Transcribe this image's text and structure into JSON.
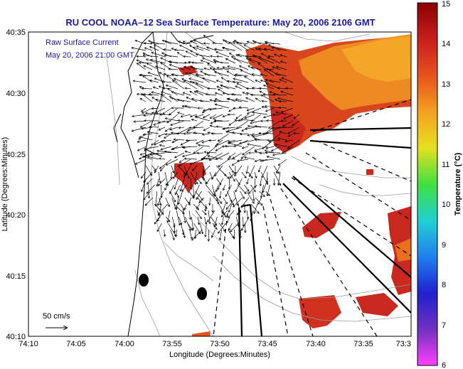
{
  "title": "RU COOL  NOAA–12  Sea Surface Temperature:  May 20, 2006 2106 GMT",
  "legend": {
    "line1": "Raw Surface Current",
    "line2": "May 20, 2006 21:00 GMT",
    "scale_label": "50 cm/s"
  },
  "x_axis": {
    "label": "Longitude (Degrees:Minutes)",
    "ticks": [
      "74:10",
      "74:05",
      "74:00",
      "73:55",
      "73:50",
      "73:45",
      "73:40",
      "73:35",
      "73:3"
    ]
  },
  "y_axis": {
    "label": "Latitude (Degrees:Minutes)",
    "ticks": [
      "40:35",
      "40:30",
      "40:25",
      "40:20",
      "40:15",
      "40:10"
    ]
  },
  "colorbar": {
    "label": "Temperature (°C)",
    "ticks": [
      "15",
      "14",
      "13",
      "12",
      "11",
      "10",
      "9",
      "8",
      "7",
      "6"
    ],
    "colors": [
      "#8b0000",
      "#c81e1e",
      "#e8501e",
      "#f5a020",
      "#e6e020",
      "#40e040",
      "#20d0d0",
      "#2080f0",
      "#2020d0",
      "#7030c0",
      "#ff40ff"
    ]
  }
}
